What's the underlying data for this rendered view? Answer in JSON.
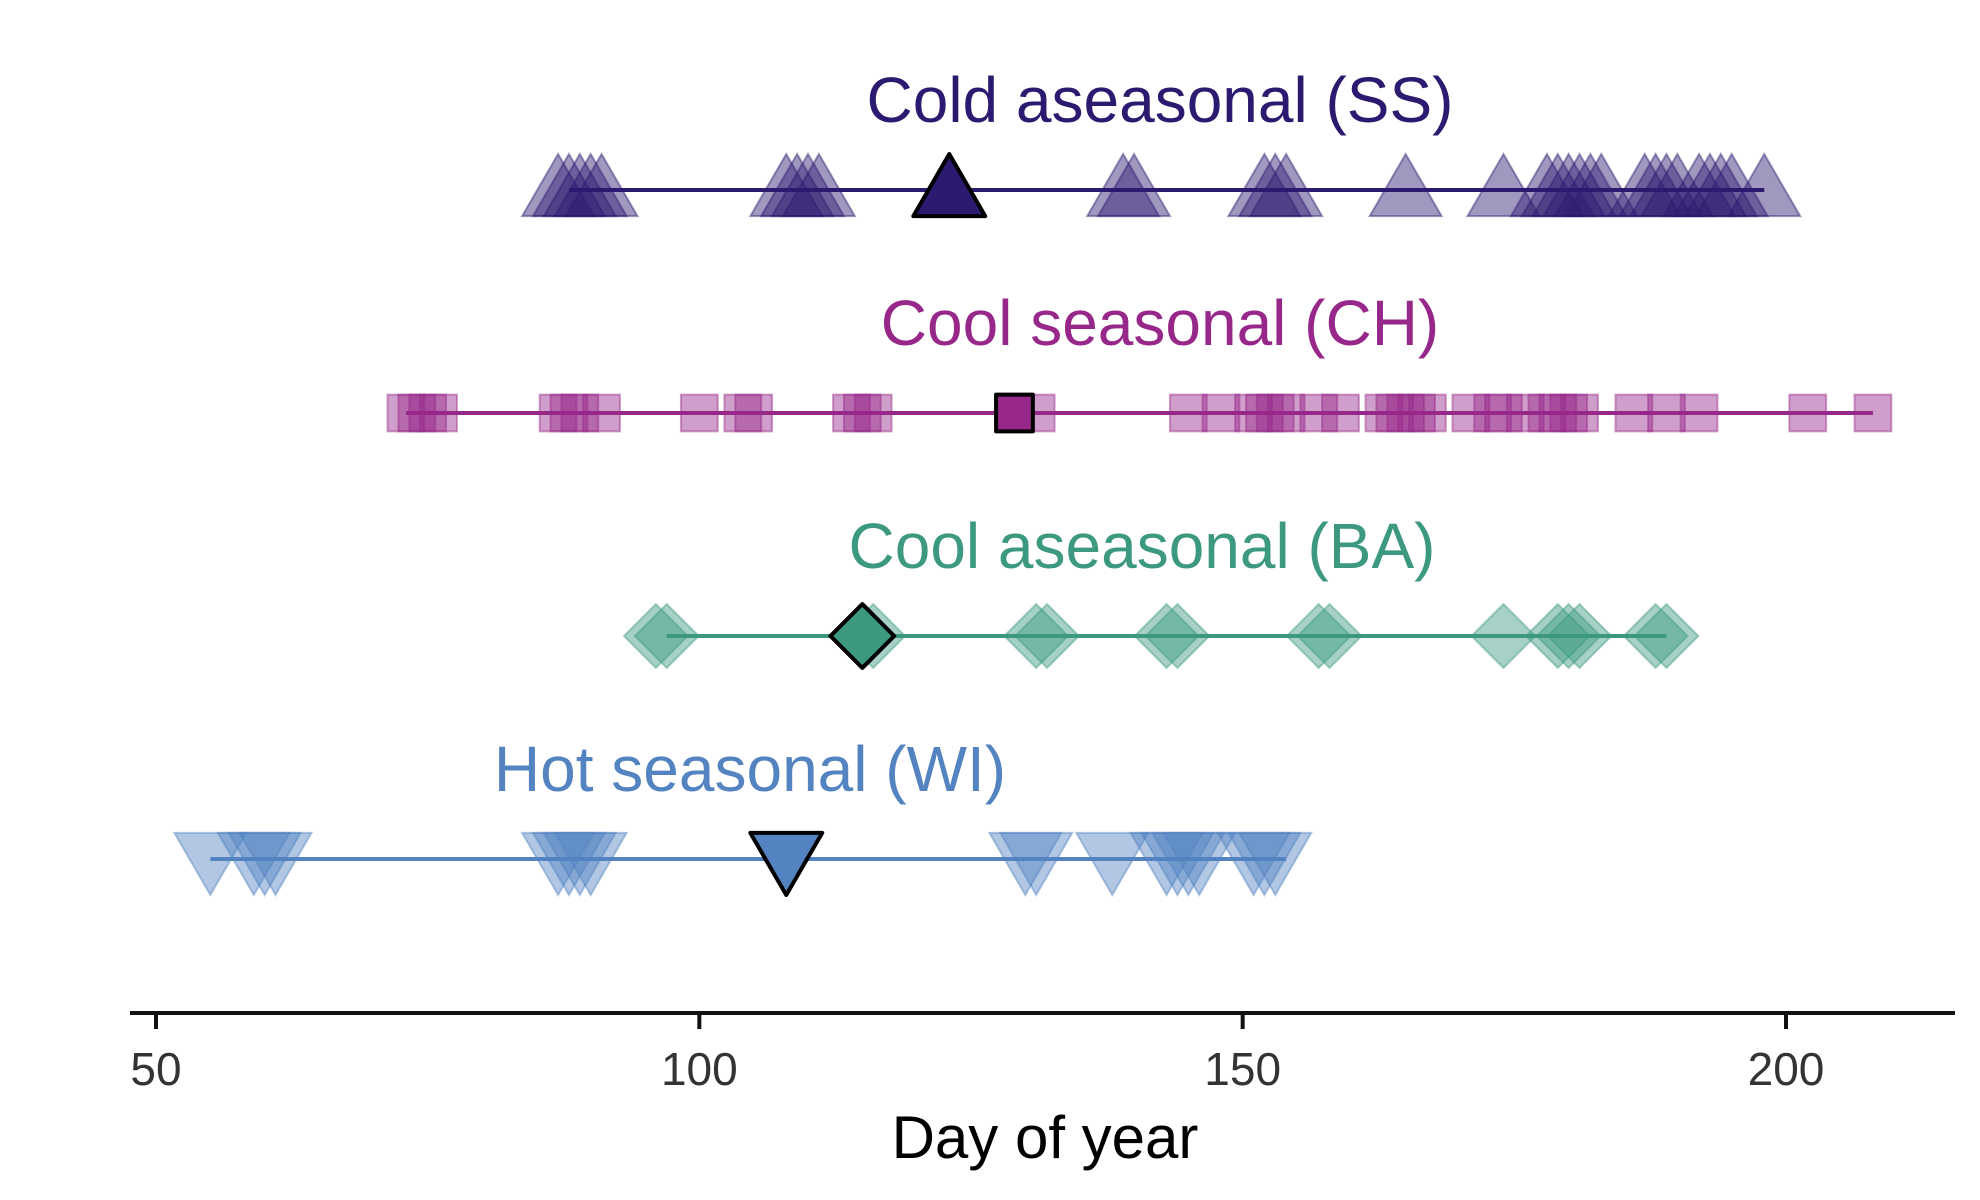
{
  "chart_data": {
    "type": "scatter",
    "title": "",
    "xlabel": "Day of year",
    "ylabel": "",
    "xlim": [
      48,
      215
    ],
    "xticks": [
      50,
      100,
      150,
      200
    ],
    "grid": false,
    "legend": "none",
    "series": [
      {
        "name": "Cold aseasonal (SS)",
        "color": "#2c1a70",
        "marker": "triangle-up",
        "range": [
          88,
          198
        ],
        "mean": 123,
        "points": [
          87,
          88,
          89,
          90,
          91,
          108,
          109,
          110,
          111,
          139,
          140,
          152,
          153,
          154,
          165,
          174,
          178,
          179,
          180,
          181,
          182,
          183,
          187,
          188,
          189,
          190,
          192,
          193,
          194,
          195,
          198
        ]
      },
      {
        "name": "Cool seasonal (CH)",
        "color": "#97288a",
        "marker": "square",
        "range": [
          73,
          208
        ],
        "mean": 129,
        "points": [
          73,
          74,
          75,
          76,
          87,
          88,
          89,
          91,
          100,
          104,
          105,
          114,
          115,
          116,
          131,
          145,
          148,
          151,
          152,
          153,
          154,
          157,
          159,
          163,
          164,
          165,
          166,
          167,
          171,
          173,
          174,
          176,
          178,
          179,
          180,
          181,
          186,
          189,
          192,
          202,
          208
        ]
      },
      {
        "name": "Cool aseasonal (BA)",
        "color": "#3c9980",
        "marker": "diamond",
        "range": [
          97,
          189
        ],
        "mean": 115,
        "points": [
          96,
          97,
          115,
          116,
          131,
          132,
          143,
          144,
          157,
          158,
          174,
          179,
          180,
          181,
          188,
          189
        ]
      },
      {
        "name": "Hot seasonal (WI)",
        "color": "#5383c0",
        "marker": "triangle-down",
        "range": [
          55,
          154
        ],
        "mean": 108,
        "points": [
          55,
          59,
          60,
          61,
          87,
          88,
          89,
          90,
          130,
          131,
          138,
          143,
          144,
          145,
          146,
          151,
          152,
          153
        ]
      }
    ]
  }
}
